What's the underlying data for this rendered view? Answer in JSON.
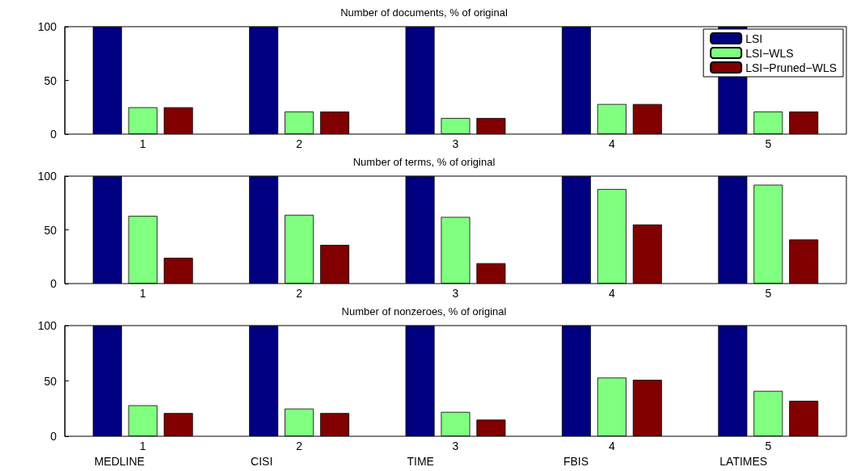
{
  "chart_data": [
    {
      "type": "bar",
      "title": "Number of documents, % of original",
      "categories": [
        "1",
        "2",
        "3",
        "4",
        "5"
      ],
      "series": [
        {
          "name": "LSI",
          "color": "#000080",
          "values": [
            100,
            100,
            100,
            100,
            100
          ]
        },
        {
          "name": "LSI−WLS",
          "color": "#80ff80",
          "values": [
            25,
            21,
            15,
            28,
            21
          ]
        },
        {
          "name": "LSI−Pruned−WLS",
          "color": "#800000",
          "values": [
            25,
            21,
            15,
            28,
            21
          ]
        }
      ],
      "ylim": [
        0,
        100
      ],
      "yticks": [
        0,
        50,
        100
      ],
      "grid": false,
      "legend": "top right"
    },
    {
      "type": "bar",
      "title": "Number of terms, % of original",
      "categories": [
        "1",
        "2",
        "3",
        "4",
        "5"
      ],
      "series": [
        {
          "color": "#000080",
          "values": [
            100,
            100,
            100,
            100,
            100
          ]
        },
        {
          "color": "#80ff80",
          "values": [
            63,
            64,
            62,
            88,
            92
          ]
        },
        {
          "color": "#800000",
          "values": [
            24,
            36,
            19,
            55,
            41
          ]
        }
      ],
      "ylim": [
        0,
        100
      ],
      "yticks": [
        0,
        50,
        100
      ],
      "grid": false,
      "legend": false
    },
    {
      "type": "bar",
      "title": "Number of nonzeroes, % of original",
      "categories": [
        "1",
        "2",
        "3",
        "4",
        "5"
      ],
      "series": [
        {
          "color": "#000080",
          "values": [
            100,
            100,
            100,
            100,
            100
          ]
        },
        {
          "color": "#80ff80",
          "values": [
            28,
            25,
            22,
            53,
            41
          ]
        },
        {
          "color": "#800000",
          "values": [
            21,
            21,
            15,
            51,
            32
          ]
        }
      ],
      "ylim": [
        0,
        100
      ],
      "yticks": [
        0,
        50,
        100
      ],
      "grid": false,
      "legend": false,
      "annotations": [
        "MEDLINE",
        "CISI",
        "TIME",
        "FBIS",
        "LATIMES"
      ]
    }
  ]
}
